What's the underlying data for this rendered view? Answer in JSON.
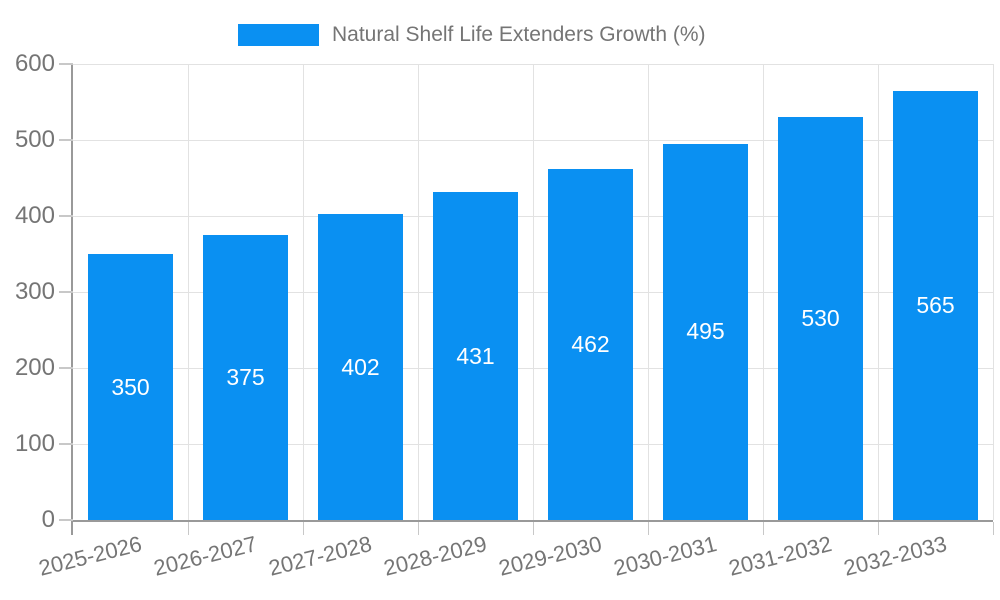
{
  "chart_data": {
    "type": "bar",
    "title": "Natural Shelf Life Extenders Growth (%)",
    "legend": {
      "label": "Natural Shelf Life Extenders Growth (%)",
      "position": "top"
    },
    "categories": [
      "2025-2026",
      "2026-2027",
      "2027-2028",
      "2028-2029",
      "2029-2030",
      "2030-2031",
      "2031-2032",
      "2032-2033"
    ],
    "series": [
      {
        "name": "Natural Shelf Life Extenders Growth (%)",
        "values": [
          350,
          375,
          402,
          431,
          462,
          495,
          530,
          565
        ]
      }
    ],
    "value_labels": [
      "350",
      "375",
      "402",
      "431",
      "462",
      "495",
      "530",
      "565"
    ],
    "xlabel": "",
    "ylabel": "",
    "ylim": [
      0,
      600
    ],
    "y_ticks": [
      0,
      100,
      200,
      300,
      400,
      500,
      600
    ],
    "y_tick_labels": [
      "0",
      "100",
      "200",
      "300",
      "400",
      "500",
      "600"
    ],
    "grid": true,
    "colors": {
      "bar": "#0a90f2",
      "grid": "#e2e2e2",
      "axis": "#999999",
      "tick": "#c8c8c8",
      "text": "#757575",
      "value_label": "#ffffff",
      "background": "#ffffff"
    }
  }
}
